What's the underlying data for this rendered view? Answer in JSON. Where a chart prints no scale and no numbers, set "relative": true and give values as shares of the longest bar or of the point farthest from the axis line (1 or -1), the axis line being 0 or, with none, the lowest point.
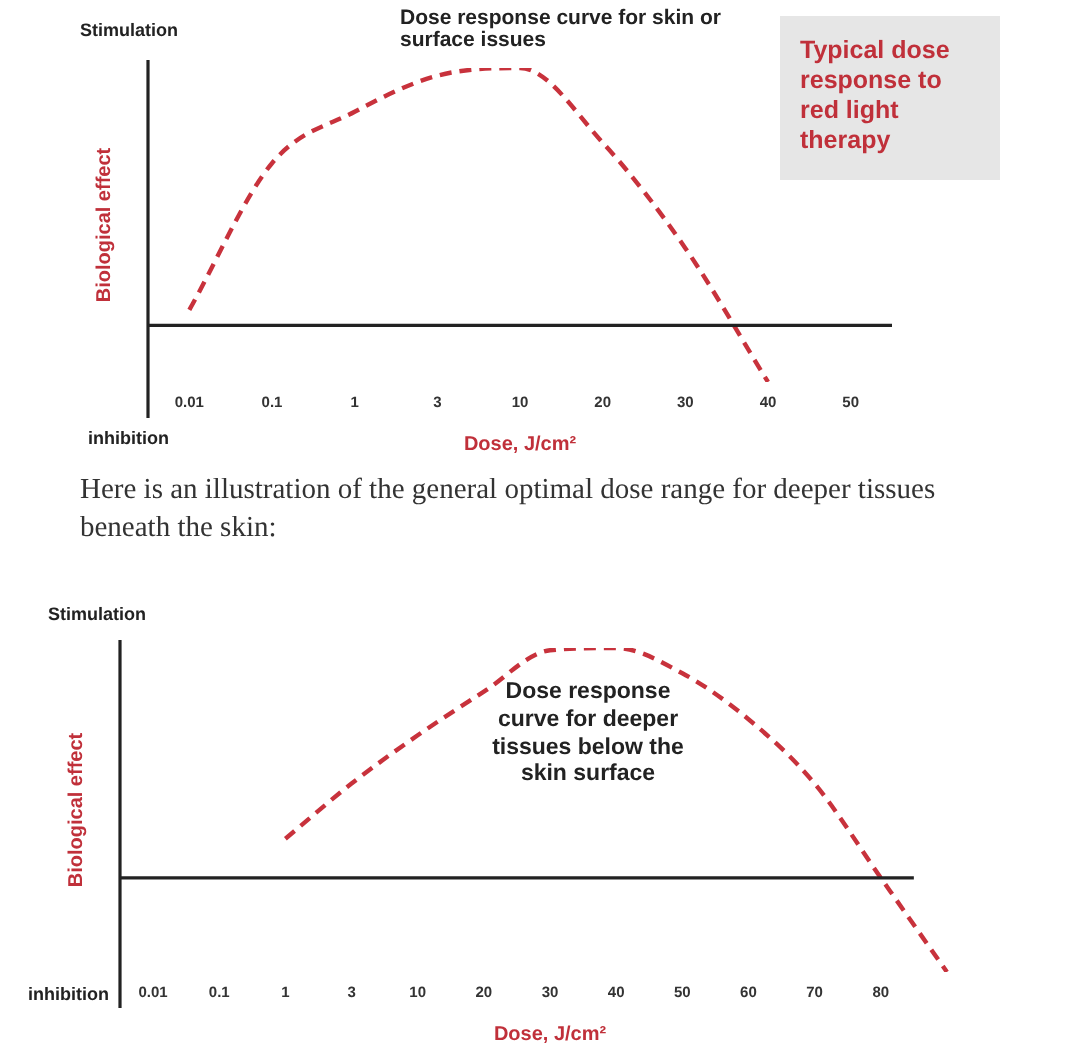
{
  "chart_data": [
    {
      "type": "line",
      "title": "Dose response curve for skin or surface issues",
      "xlabel": "Dose, J/cm²",
      "ylabel": "Biological effect",
      "annotations": [
        "Stimulation",
        "inhibition",
        "Typical dose response to red light therapy"
      ],
      "relative": true,
      "categories": [
        "0.01",
        "0.1",
        "1",
        "3",
        "10",
        "20",
        "30",
        "40",
        "50"
      ],
      "values": [
        0.06,
        0.63,
        0.83,
        0.97,
        1,
        0.71,
        0.3,
        -0.22,
        null
      ],
      "color": "#c8323c",
      "marker": "none",
      "line_style": "dashed",
      "legend": false,
      "grid": false
    },
    {
      "type": "line",
      "title": "Here is an illustration of the general optimal dose range for deeper tissues beneath the skin:",
      "xlabel": "Dose, J/cm²",
      "ylabel": "Biological effect",
      "annotations": [
        "Stimulation",
        "inhibition",
        "Dose response curve for deeper tissues below the skin surface"
      ],
      "relative": true,
      "categories": [
        "0.01",
        "0.1",
        "1",
        "3",
        "10",
        "20",
        "30",
        "40",
        "50",
        "60",
        "70",
        "80",
        null
      ],
      "values": [
        null,
        null,
        0.17,
        0.41,
        0.62,
        0.81,
        0.99,
        1,
        0.89,
        0.69,
        0.41,
        0,
        -0.41
      ],
      "color": "#c8323c",
      "marker": "none",
      "line_style": "dashed",
      "legend": false,
      "grid": false
    }
  ]
}
